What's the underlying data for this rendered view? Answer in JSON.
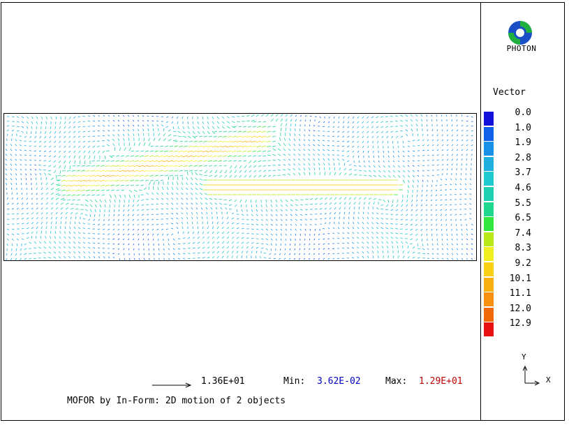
{
  "header": {
    "logo_text": "PHOTON"
  },
  "legend": {
    "title": "Vector",
    "entries": [
      {
        "label": "0.0",
        "color": "#1010d8"
      },
      {
        "label": "1.0",
        "color": "#1060e8"
      },
      {
        "label": "1.9",
        "color": "#1890e8"
      },
      {
        "label": "2.8",
        "color": "#20b0e0"
      },
      {
        "label": "3.7",
        "color": "#20c8d0"
      },
      {
        "label": "4.6",
        "color": "#20d0b0"
      },
      {
        "label": "5.5",
        "color": "#20d890"
      },
      {
        "label": "6.5",
        "color": "#30e840"
      },
      {
        "label": "7.4",
        "color": "#b8e818"
      },
      {
        "label": "8.3",
        "color": "#f0f020"
      },
      {
        "label": "9.2",
        "color": "#f8d018"
      },
      {
        "label": "10.1",
        "color": "#f8b010"
      },
      {
        "label": "11.1",
        "color": "#f89010"
      },
      {
        "label": "12.0",
        "color": "#f06808"
      },
      {
        "label": "12.9",
        "color": "#e81010"
      }
    ]
  },
  "footer": {
    "reference_vector_value": "1.36E+01",
    "min_label": "Min:",
    "min_value": "3.62E-02",
    "min_color": "#0000c0",
    "max_label": "Max:",
    "max_value": "1.29E+01",
    "max_color": "#c00000",
    "caption": "MOFOR by In-Form: 2D motion of 2 objects"
  },
  "axes": {
    "y_label": "Y",
    "x_label": "X"
  }
}
